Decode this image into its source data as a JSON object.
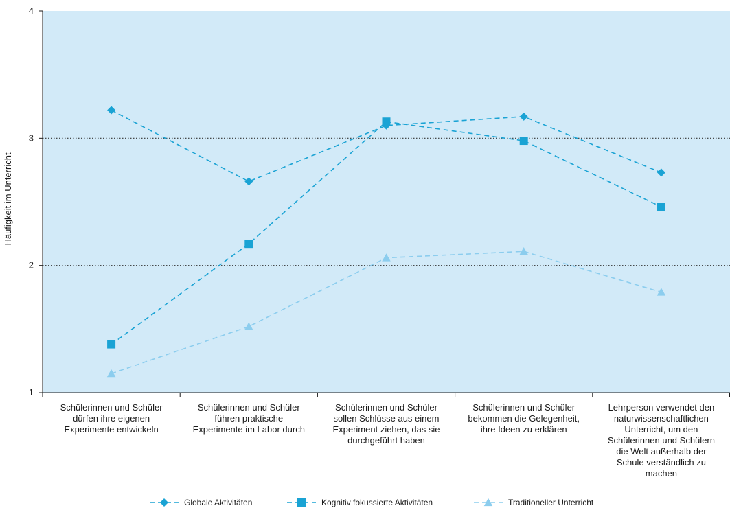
{
  "chart_data": {
    "type": "line",
    "ylabel": "Häufigkeit im Unterricht",
    "xlabel": "",
    "ylim": [
      1,
      4
    ],
    "yticks": [
      1,
      2,
      3,
      4
    ],
    "ygrid": [
      2,
      3
    ],
    "legend_position": "bottom",
    "background_color": "#d2eaf8",
    "categories": [
      [
        "Schülerinnen und Schüler",
        "dürfen ihre eigenen",
        "Experimente entwickeln"
      ],
      [
        "Schülerinnen und Schüler",
        "führen praktische",
        "Experimente im Labor durch"
      ],
      [
        "Schülerinnen und Schüler",
        "sollen Schlüsse aus einem",
        "Experiment ziehen, das sie",
        "durchgeführt haben"
      ],
      [
        "Schülerinnen und Schüler",
        "bekommen die Gelegenheit,",
        "ihre Ideen zu erklären"
      ],
      [
        "Lehrperson verwendet den",
        "naturwissenschaftlichen",
        "Unterricht, um den",
        "Schülerinnen und Schülern",
        "die Welt außerhalb der",
        "Schule verständlich zu",
        "machen"
      ]
    ],
    "series": [
      {
        "name": "Globale Aktivitäten",
        "marker": "diamond",
        "color": "#1aa3d4",
        "values": [
          3.22,
          2.66,
          3.1,
          3.17,
          2.73
        ]
      },
      {
        "name": "Kognitiv fokussierte Aktivitäten",
        "marker": "square",
        "color": "#1aa3d4",
        "values": [
          1.38,
          2.17,
          3.13,
          2.98,
          2.46
        ]
      },
      {
        "name": "Traditioneller Unterricht",
        "marker": "triangle",
        "color": "#8ccdee",
        "values": [
          1.15,
          1.52,
          2.06,
          2.11,
          1.79
        ]
      }
    ]
  }
}
